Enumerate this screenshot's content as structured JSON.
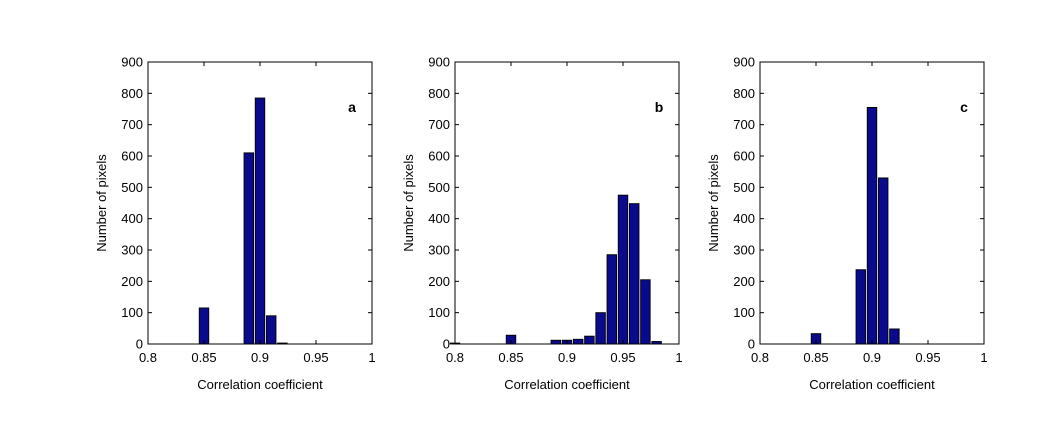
{
  "chart_data": [
    {
      "type": "bar",
      "panel_label": "a",
      "xlabel": "Correlation coefficient",
      "ylabel": "Number of pixels",
      "xlim": [
        0.8,
        1
      ],
      "ylim": [
        0,
        900
      ],
      "xticks": [
        "0.8",
        "0.85",
        "0.9",
        "0.95",
        "1"
      ],
      "yticks": [
        "0",
        "100",
        "200",
        "300",
        "400",
        "500",
        "600",
        "700",
        "800",
        "900"
      ],
      "bar_color": "#0a0a8c",
      "x": [
        0.85,
        0.89,
        0.9,
        0.91,
        0.92
      ],
      "values": [
        115,
        610,
        785,
        90,
        3
      ]
    },
    {
      "type": "bar",
      "panel_label": "b",
      "xlabel": "Correlation coefficient",
      "ylabel": "Number of pixels",
      "xlim": [
        0.8,
        1
      ],
      "ylim": [
        0,
        900
      ],
      "xticks": [
        "0.8",
        "0.85",
        "0.9",
        "0.95",
        "1"
      ],
      "yticks": [
        "0",
        "100",
        "200",
        "300",
        "400",
        "500",
        "600",
        "700",
        "800",
        "900"
      ],
      "bar_color": "#0a0a8c",
      "x": [
        0.8,
        0.85,
        0.89,
        0.9,
        0.91,
        0.92,
        0.93,
        0.94,
        0.95,
        0.96,
        0.97,
        0.98
      ],
      "values": [
        3,
        28,
        12,
        12,
        15,
        25,
        100,
        285,
        475,
        448,
        205,
        8
      ]
    },
    {
      "type": "bar",
      "panel_label": "c",
      "xlabel": "Correlation coefficient",
      "ylabel": "Number of pixels",
      "xlim": [
        0.8,
        1
      ],
      "ylim": [
        0,
        900
      ],
      "xticks": [
        "0.8",
        "0.85",
        "0.9",
        "0.95",
        "1"
      ],
      "yticks": [
        "0",
        "100",
        "200",
        "300",
        "400",
        "500",
        "600",
        "700",
        "800",
        "900"
      ],
      "bar_color": "#0a0a8c",
      "x": [
        0.85,
        0.89,
        0.9,
        0.91,
        0.92
      ],
      "values": [
        33,
        237,
        755,
        530,
        48
      ]
    }
  ]
}
